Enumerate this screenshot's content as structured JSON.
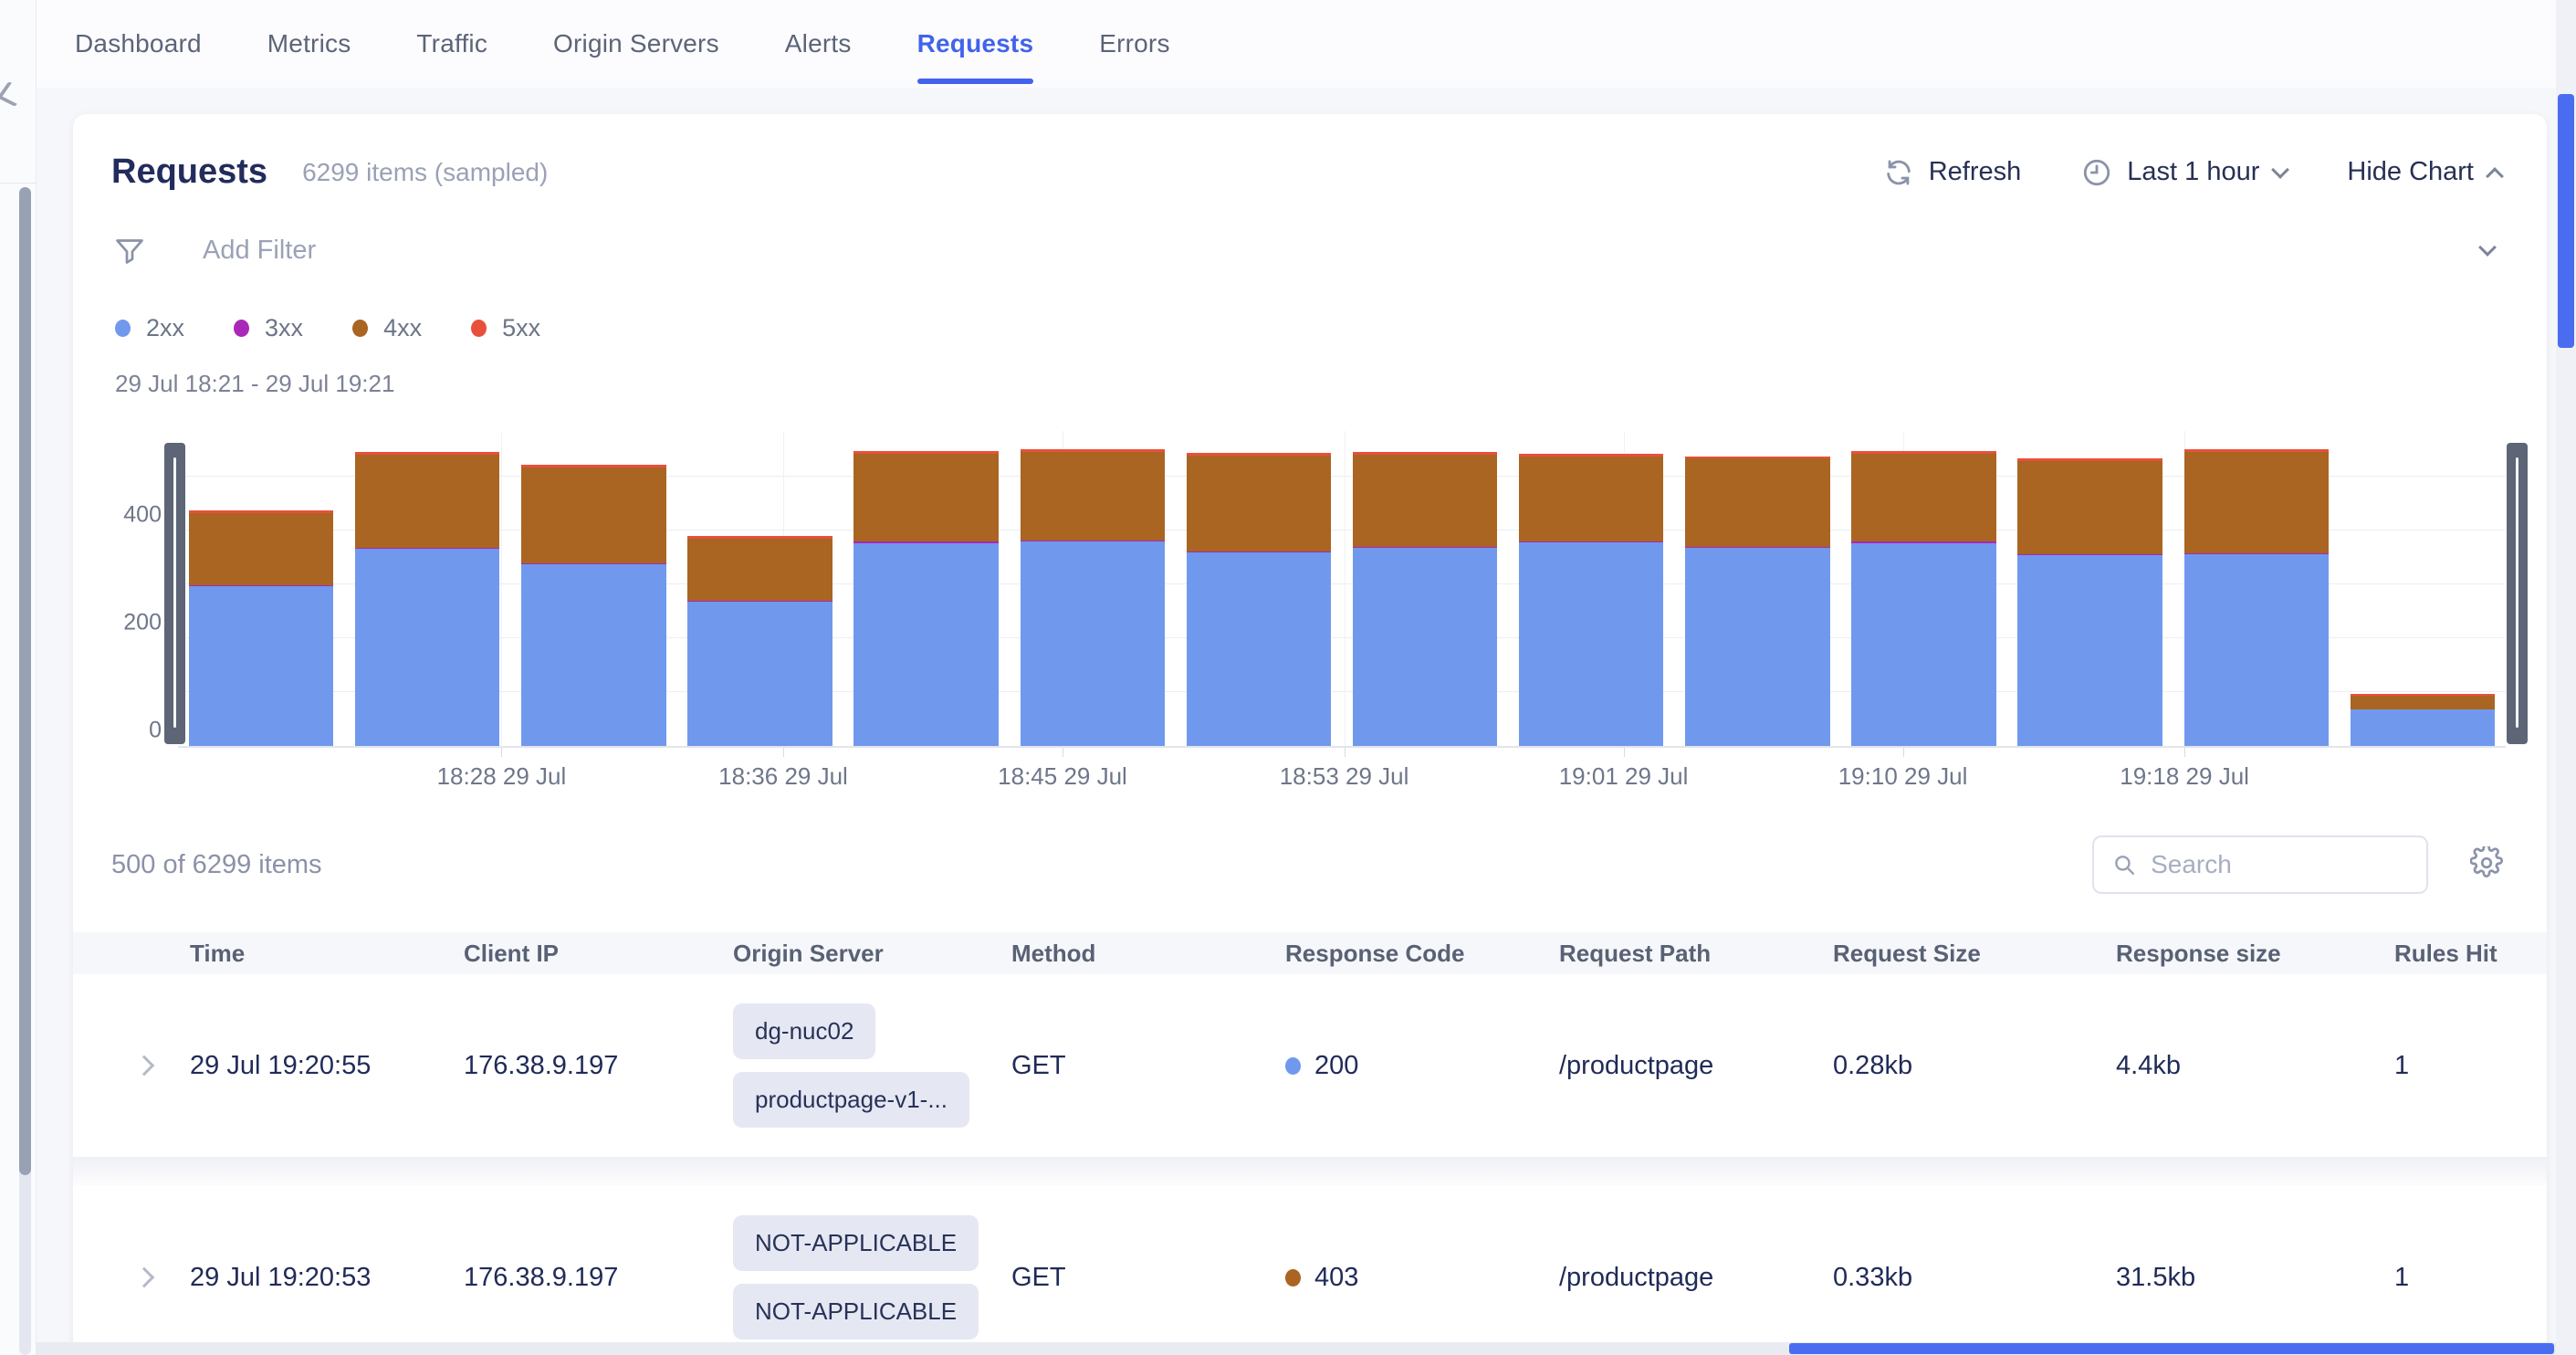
{
  "nav": {
    "tabs": [
      {
        "label": "Dashboard",
        "active": false
      },
      {
        "label": "Metrics",
        "active": false
      },
      {
        "label": "Traffic",
        "active": false
      },
      {
        "label": "Origin Servers",
        "active": false
      },
      {
        "label": "Alerts",
        "active": false
      },
      {
        "label": "Requests",
        "active": true
      },
      {
        "label": "Errors",
        "active": false
      }
    ]
  },
  "header": {
    "title": "Requests",
    "subtitle": "6299 items (sampled)",
    "refresh_label": "Refresh",
    "time_range_label": "Last 1 hour",
    "hide_chart_label": "Hide Chart"
  },
  "filter": {
    "placeholder": "Add Filter"
  },
  "legend": [
    {
      "label": "2xx",
      "color": "#7099ee"
    },
    {
      "label": "3xx",
      "color": "#a928b8"
    },
    {
      "label": "4xx",
      "color": "#a96521"
    },
    {
      "label": "5xx",
      "color": "#e8503b"
    }
  ],
  "chart_data": {
    "type": "bar",
    "stacked": true,
    "title": "",
    "time_window_label": "29 Jul 18:21 - 29 Jul 19:21",
    "series": [
      {
        "name": "2xx",
        "color": "#7099ee",
        "values": [
          296,
          366,
          337,
          267,
          377,
          379,
          359,
          367,
          378,
          368,
          377,
          354,
          356,
          67
        ]
      },
      {
        "name": "3xx",
        "color": "#a928b8",
        "values": [
          2,
          2,
          2,
          2,
          2,
          2,
          2,
          2,
          2,
          2,
          2,
          2,
          2,
          1
        ]
      },
      {
        "name": "4xx",
        "color": "#a96521",
        "values": [
          135,
          172,
          178,
          115,
          163,
          165,
          178,
          172,
          158,
          163,
          163,
          172,
          188,
          26
        ]
      },
      {
        "name": "5xx",
        "color": "#e8503b",
        "values": [
          5,
          5,
          5,
          5,
          5,
          5,
          5,
          5,
          5,
          5,
          5,
          5,
          5,
          3
        ]
      }
    ],
    "x_tick_labels": [
      "18:28 29 Jul",
      "18:36 29 Jul",
      "18:45 29 Jul",
      "18:53 29 Jul",
      "19:01 29 Jul",
      "19:10 29 Jul",
      "19:18 29 Jul"
    ],
    "x_tick_positions_pct": [
      13.9,
      26.0,
      38.0,
      50.1,
      62.1,
      74.1,
      86.2
    ],
    "y_ticks": [
      0,
      200,
      400
    ],
    "y_gridlines": [
      100,
      200,
      300,
      400,
      500
    ],
    "ylim": [
      0,
      588
    ],
    "grid": true,
    "legend_position": "top-left"
  },
  "table": {
    "summary": "500 of 6299 items",
    "search_placeholder": "Search",
    "columns": [
      "Time",
      "Client IP",
      "Origin Server",
      "Method",
      "Response Code",
      "Request Path",
      "Request Size",
      "Response size",
      "Rules Hit"
    ],
    "rows": [
      {
        "time": "29 Jul 19:20:55",
        "client_ip": "176.38.9.197",
        "origin_tags": [
          "dg-nuc02",
          "productpage-v1-..."
        ],
        "method": "GET",
        "response_code": "200",
        "code_color": "#7099ee",
        "request_path": "/productpage",
        "request_size": "0.28kb",
        "response_size": "4.4kb",
        "rules_hit": "1"
      },
      {
        "time": "29 Jul 19:20:53",
        "client_ip": "176.38.9.197",
        "origin_tags": [
          "NOT-APPLICABLE",
          "NOT-APPLICABLE"
        ],
        "method": "GET",
        "response_code": "403",
        "code_color": "#a96521",
        "request_path": "/productpage",
        "request_size": "0.33kb",
        "response_size": "31.5kb",
        "rules_hit": "1"
      }
    ]
  }
}
